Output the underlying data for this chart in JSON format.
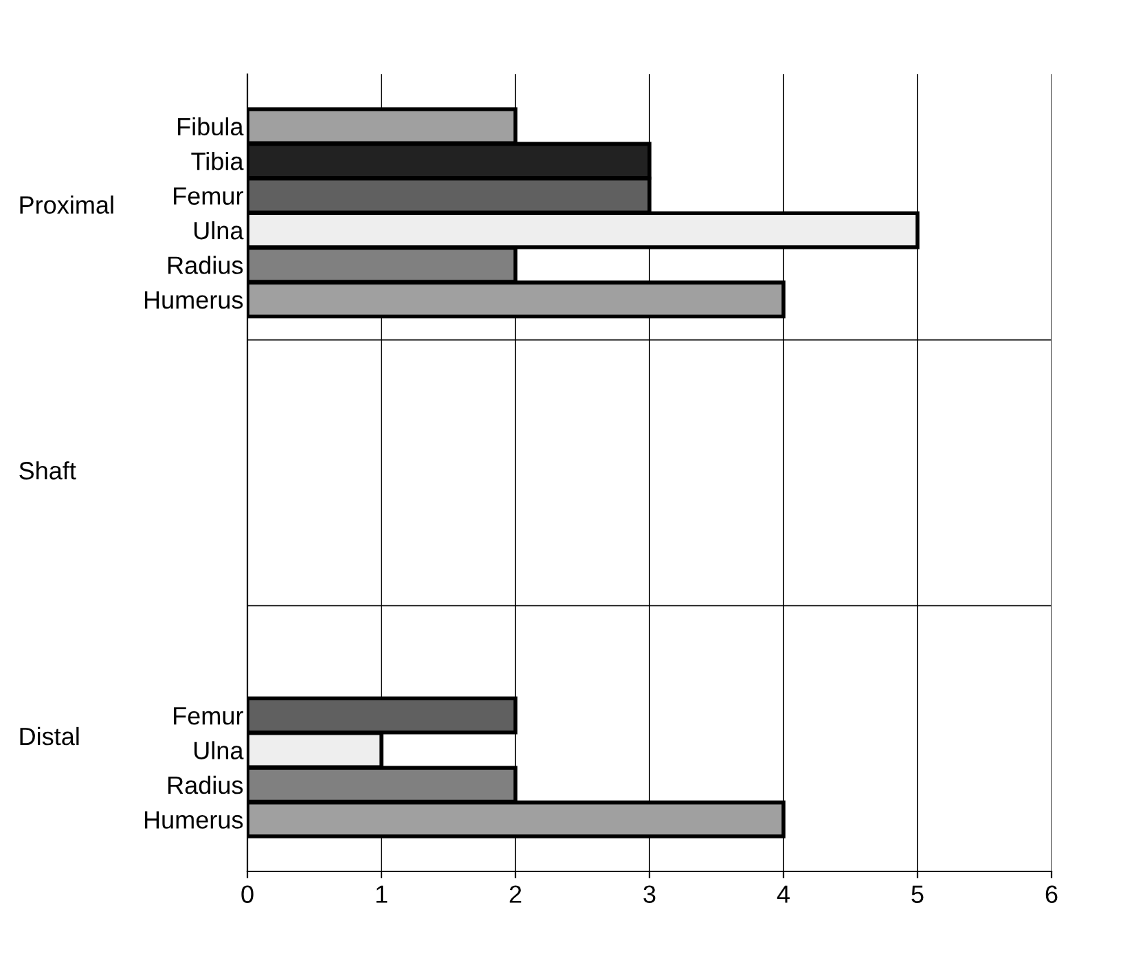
{
  "chart_data": {
    "type": "bar",
    "orientation": "horizontal",
    "categories": [
      null,
      "Fibula",
      "Tibia",
      "Femur",
      "Ulna",
      "Radius",
      "Humerus",
      null,
      null,
      null,
      null,
      null,
      null,
      null,
      null,
      null,
      null,
      null,
      "Femur",
      "Ulna",
      "Radius",
      "Humerus",
      null
    ],
    "values": [
      null,
      2,
      3,
      3,
      5,
      2,
      4,
      null,
      null,
      null,
      null,
      null,
      null,
      null,
      null,
      null,
      null,
      null,
      2,
      1,
      2,
      4,
      null
    ],
    "colors": [
      null,
      "#a0a0a0",
      "#222222",
      "#606060",
      "#eeeeee",
      "#808080",
      "#a0a0a0",
      null,
      null,
      null,
      null,
      null,
      null,
      null,
      null,
      null,
      null,
      null,
      "#606060",
      "#eeeeee",
      "#808080",
      "#a0a0a0",
      null
    ],
    "annotations": [
      "Proximal",
      "Shaft",
      "Distal"
    ],
    "xlim": [
      0,
      6
    ],
    "xticks": [
      0,
      1,
      2,
      3,
      4,
      5,
      6
    ],
    "grid": "x",
    "legend": false
  }
}
